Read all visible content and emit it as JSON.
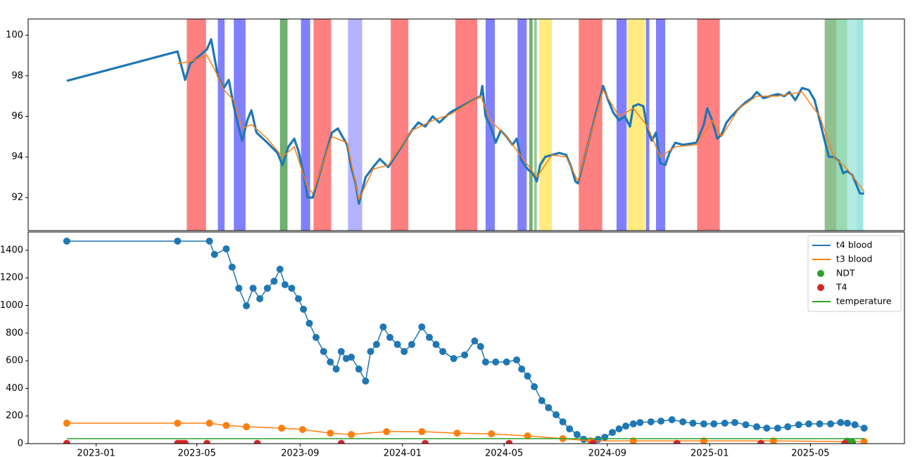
{
  "chart_data": [
    {
      "type": "line",
      "xlim": [
        19277,
        20321
      ],
      "ylim": [
        90.37,
        100.8
      ],
      "yticks": [
        92,
        94,
        96,
        98,
        100
      ],
      "spans": [
        {
          "start": 19466,
          "end": 19489,
          "color": "#ff8080"
        },
        {
          "start": 19503,
          "end": 19511,
          "color": "#8080ff"
        },
        {
          "start": 19522,
          "end": 19536,
          "color": "#8080ff"
        },
        {
          "start": 19577,
          "end": 19586,
          "color": "#70b070"
        },
        {
          "start": 19602,
          "end": 19613,
          "color": "#8080ff"
        },
        {
          "start": 19617,
          "end": 19638,
          "color": "#ff8080"
        },
        {
          "start": 19658,
          "end": 19675,
          "color": "#b3b3ff"
        },
        {
          "start": 19709,
          "end": 19730,
          "color": "#ff8080"
        },
        {
          "start": 19786,
          "end": 19812,
          "color": "#ff8080"
        },
        {
          "start": 19822,
          "end": 19833,
          "color": "#8080ff"
        },
        {
          "start": 19860,
          "end": 19871,
          "color": "#8080ff"
        },
        {
          "start": 19874,
          "end": 19878,
          "color": "#70b070"
        },
        {
          "start": 19880,
          "end": 19883,
          "color": "#8fc88f"
        },
        {
          "start": 19886,
          "end": 19901,
          "color": "#ffeb80"
        },
        {
          "start": 19933,
          "end": 19961,
          "color": "#ff8080"
        },
        {
          "start": 19978,
          "end": 19990,
          "color": "#8080ff"
        },
        {
          "start": 19991,
          "end": 20012,
          "color": "#ffeb80"
        },
        {
          "start": 20013,
          "end": 20017,
          "color": "#8080ff"
        },
        {
          "start": 20025,
          "end": 20036,
          "color": "#8080ff"
        },
        {
          "start": 20074,
          "end": 20101,
          "color": "#ff8080"
        },
        {
          "start": 20226,
          "end": 20240,
          "color": "#8fc08f"
        },
        {
          "start": 20240,
          "end": 20253,
          "color": "#99dbb4"
        },
        {
          "start": 20253,
          "end": 20264,
          "color": "#b3ebe3"
        },
        {
          "start": 20264,
          "end": 20272,
          "color": "#a0e6e0"
        }
      ],
      "series": [
        {
          "color": "#1f77b4",
          "x": [
            19323,
            19455,
            19464,
            19470,
            19490,
            19495,
            19503,
            19510,
            19516,
            19522,
            19527,
            19532,
            19538,
            19543,
            19549,
            19562,
            19574,
            19580,
            19587,
            19594,
            19599,
            19605,
            19610,
            19616,
            19639,
            19646,
            19657,
            19662,
            19667,
            19671,
            19679,
            19688,
            19696,
            19706,
            19734,
            19742,
            19750,
            19759,
            19767,
            19780,
            19816,
            19818,
            19822,
            19828,
            19834,
            19840,
            19847,
            19854,
            19859,
            19865,
            19872,
            19878,
            19883,
            19887,
            19893,
            19901,
            19910,
            19918,
            19924,
            19929,
            19932,
            19962,
            19968,
            19974,
            19981,
            19988,
            19994,
            19998,
            20004,
            20010,
            20015,
            20020,
            20025,
            20030,
            20036,
            20041,
            20048,
            20057,
            20073,
            20082,
            20086,
            20092,
            20098,
            20103,
            20109,
            20115,
            20124,
            20132,
            20139,
            20145,
            20153,
            20161,
            20170,
            20178,
            20184,
            20191,
            20199,
            20207,
            20214,
            20220,
            20226,
            20231,
            20237,
            20243,
            20248,
            20253,
            20259,
            20264,
            20268,
            20273
          ],
          "values": [
            97.75,
            99.2,
            97.8,
            98.6,
            99.3,
            99.8,
            98.0,
            97.4,
            97.8,
            96.5,
            95.6,
            94.8,
            95.8,
            96.3,
            95.2,
            94.7,
            94.2,
            93.6,
            94.5,
            94.9,
            94.3,
            93.2,
            92.0,
            92.0,
            95.2,
            95.4,
            94.6,
            93.5,
            92.7,
            91.7,
            93.0,
            93.5,
            93.9,
            93.5,
            95.3,
            95.7,
            95.5,
            96.0,
            95.7,
            96.2,
            97.0,
            97.5,
            96.0,
            95.5,
            94.7,
            95.3,
            95.0,
            94.6,
            94.9,
            93.8,
            93.4,
            93.2,
            92.8,
            93.6,
            94.0,
            94.1,
            94.2,
            94.1,
            93.5,
            92.8,
            92.7,
            97.5,
            96.8,
            96.2,
            95.8,
            96.0,
            95.5,
            96.5,
            96.6,
            96.5,
            95.3,
            94.8,
            95.2,
            93.7,
            93.6,
            94.2,
            94.7,
            94.6,
            94.7,
            95.6,
            96.4,
            95.8,
            94.9,
            95.1,
            95.7,
            96.0,
            96.4,
            96.7,
            96.9,
            97.2,
            96.9,
            97.0,
            97.1,
            97.0,
            97.2,
            96.8,
            97.4,
            97.3,
            96.8,
            95.8,
            94.8,
            94.0,
            94.0,
            93.8,
            93.2,
            93.3,
            93.1,
            92.6,
            92.2,
            92.2
          ]
        },
        {
          "color": "#ff7f0e",
          "x": [
            19455,
            19470,
            19490,
            19503,
            19510,
            19522,
            19532,
            19543,
            19562,
            19580,
            19594,
            19610,
            19616,
            19639,
            19657,
            19671,
            19688,
            19706,
            19734,
            19759,
            19780,
            19816,
            19828,
            19847,
            19865,
            19883,
            19901,
            19918,
            19932,
            19962,
            19981,
            19998,
            20015,
            20030,
            20048,
            20073,
            20092,
            20103,
            20124,
            20145,
            20170,
            20199,
            20220,
            20237,
            20253,
            20273
          ],
          "values": [
            98.6,
            98.7,
            99.0,
            98.0,
            97.3,
            96.8,
            95.4,
            95.6,
            94.9,
            94.0,
            94.5,
            92.5,
            92.2,
            95.0,
            94.7,
            91.9,
            93.4,
            93.6,
            95.3,
            95.8,
            96.1,
            97.0,
            95.8,
            95.0,
            94.0,
            93.0,
            94.1,
            94.0,
            92.8,
            97.3,
            96.0,
            96.4,
            95.5,
            94.0,
            94.5,
            94.6,
            95.8,
            95.0,
            96.4,
            97.0,
            97.0,
            97.2,
            96.0,
            94.0,
            93.4,
            92.3
          ]
        }
      ]
    },
    {
      "type": "line",
      "xlim": [
        19277,
        20321
      ],
      "ylim": [
        0,
        1532
      ],
      "yticks": [
        0,
        200,
        400,
        600,
        800,
        1000,
        1200,
        1400
      ],
      "xticks": [
        {
          "value": 19358,
          "label": "2023-01"
        },
        {
          "value": 19478,
          "label": "2023-05"
        },
        {
          "value": 19601,
          "label": "2023-09"
        },
        {
          "value": 19723,
          "label": "2024-01"
        },
        {
          "value": 19844,
          "label": "2024-05"
        },
        {
          "value": 19967,
          "label": "2024-09"
        },
        {
          "value": 20089,
          "label": "2025-01"
        },
        {
          "value": 20209,
          "label": "2025-05"
        }
      ],
      "legend": "upper right",
      "series": [
        {
          "name": "t4 blood",
          "kind": "line-markers",
          "color": "#1f77b4",
          "x": [
            19323,
            19455,
            19493,
            19499,
            19513,
            19520,
            19528,
            19537,
            19545,
            19553,
            19562,
            19570,
            19577,
            19583,
            19591,
            19599,
            19605,
            19612,
            19620,
            19629,
            19637,
            19644,
            19650,
            19656,
            19662,
            19671,
            19679,
            19685,
            19692,
            19700,
            19708,
            19717,
            19725,
            19734,
            19746,
            19755,
            19763,
            19771,
            19784,
            19797,
            19809,
            19816,
            19822,
            19834,
            19847,
            19859,
            19865,
            19872,
            19880,
            19889,
            19897,
            19906,
            19914,
            19922,
            19931,
            19939,
            19947,
            19956,
            19964,
            19973,
            19981,
            19989,
            19998,
            20006,
            20019,
            20031,
            20044,
            20057,
            20069,
            20082,
            20094,
            20107,
            20119,
            20132,
            20145,
            20157,
            20170,
            20182,
            20195,
            20207,
            20220,
            20233,
            20245,
            20253,
            20262,
            20273
          ],
          "values": [
            1466,
            1466,
            1466,
            1370,
            1410,
            1278,
            1125,
            998,
            1125,
            1049,
            1125,
            1176,
            1263,
            1151,
            1125,
            1049,
            973,
            871,
            769,
            667,
            591,
            540,
            667,
            616,
            626,
            540,
            453,
            667,
            718,
            845,
            769,
            718,
            667,
            718,
            845,
            769,
            718,
            667,
            616,
            642,
            743,
            703,
            591,
            591,
            591,
            606,
            540,
            489,
            412,
            311,
            260,
            209,
            158,
            107,
            66,
            31,
            20,
            31,
            46,
            81,
            107,
            127,
            143,
            153,
            158,
            163,
            173,
            158,
            148,
            143,
            143,
            148,
            153,
            137,
            122,
            112,
            112,
            122,
            137,
            143,
            143,
            143,
            153,
            148,
            137,
            112
          ]
        },
        {
          "name": "t3 blood",
          "kind": "line-markers",
          "color": "#ff7f0e",
          "x": [
            19323,
            19455,
            19493,
            19513,
            19537,
            19579,
            19604,
            19637,
            19662,
            19704,
            19746,
            19788,
            19829,
            19872,
            19914,
            19947,
            19998,
            20082,
            20165,
            20273
          ],
          "values": [
            148,
            148,
            148,
            132,
            122,
            112,
            102,
            76,
            66,
            87,
            87,
            76,
            71,
            56,
            36,
            20,
            20,
            20,
            20,
            15
          ]
        },
        {
          "name": "NDT",
          "kind": "scatter",
          "color": "#2ca02c",
          "x": [
            20253,
            20259
          ],
          "values": [
            18,
            10
          ]
        },
        {
          "name": "T4",
          "kind": "scatter",
          "color": "#d62728",
          "x": [
            19323,
            19455,
            19458,
            19461,
            19464,
            19490,
            19550,
            19650,
            19750,
            19850,
            19950,
            20050,
            20150,
            20250
          ],
          "values": [
            2,
            2,
            2,
            2,
            2,
            2,
            2,
            2,
            2,
            2,
            2,
            2,
            2,
            2
          ]
        },
        {
          "name": "temperature",
          "kind": "line",
          "color": "#2ca02c",
          "x": [
            19323,
            19455,
            19700,
            19950,
            20273
          ],
          "values": [
            36,
            36,
            36,
            36,
            36
          ]
        }
      ]
    }
  ]
}
